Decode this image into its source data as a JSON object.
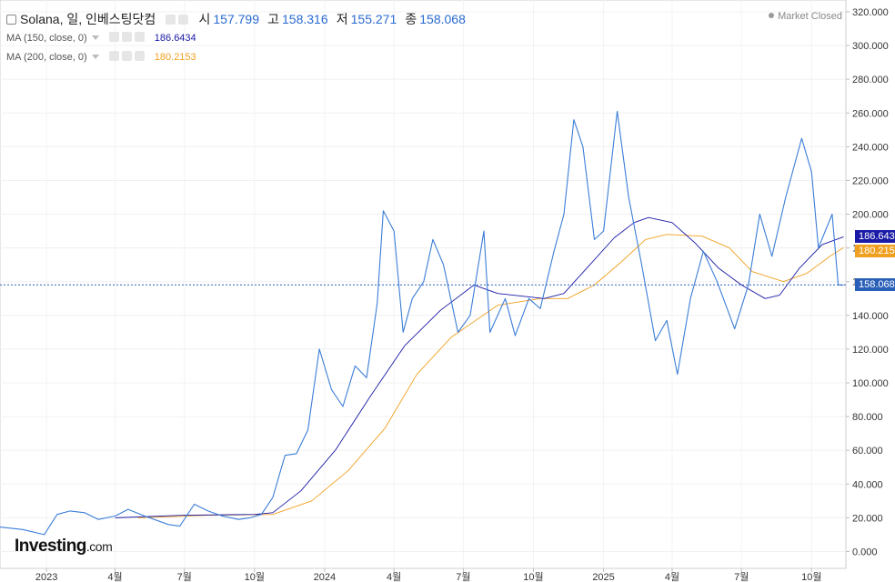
{
  "header": {
    "title": "Solana, 일, 인베스팅닷컴",
    "open_label": "시",
    "open": "157.799",
    "high_label": "고",
    "high": "158.316",
    "low_label": "저",
    "low": "155.271",
    "close_label": "종",
    "close": "158.068",
    "ma150_label": "MA (150, close, 0)",
    "ma150_value": "186.6434",
    "ma200_label": "MA (200, close, 0)",
    "ma200_value": "180.2153",
    "market_status": "Market Closed"
  },
  "price_tags": {
    "ma150": "186.643",
    "ma200": "180.215",
    "last": "158.068"
  },
  "logo": {
    "text": "Investing",
    "suffix": ".com"
  },
  "colors": {
    "price": "#3b7dd8",
    "ma150": "#1a1aa6",
    "ma200": "#f0a020",
    "last_line": "#2a5fb8"
  },
  "chart_data": {
    "type": "line",
    "x_range": [
      "2022-11-01",
      "2025-11-15"
    ],
    "ylim": [
      -10,
      327
    ],
    "y_ticks": [
      "320.000",
      "300.000",
      "280.000",
      "260.000",
      "240.000",
      "220.000",
      "200.000",
      "180.000",
      "160.000",
      "140.000",
      "120.000",
      "100.000",
      "80.000",
      "60.000",
      "40.000",
      "20.000",
      "0.000"
    ],
    "x_ticks": [
      {
        "date": "2023-01-01",
        "label": "2023"
      },
      {
        "date": "2023-04-01",
        "label": "4월"
      },
      {
        "date": "2023-07-01",
        "label": "7월"
      },
      {
        "date": "2023-10-01",
        "label": "10월"
      },
      {
        "date": "2024-01-01",
        "label": "2024"
      },
      {
        "date": "2024-04-01",
        "label": "4월"
      },
      {
        "date": "2024-07-01",
        "label": "7월"
      },
      {
        "date": "2024-10-01",
        "label": "10월"
      },
      {
        "date": "2025-01-01",
        "label": "2025"
      },
      {
        "date": "2025-04-01",
        "label": "4월"
      },
      {
        "date": "2025-07-01",
        "label": "7월"
      },
      {
        "date": "2025-10-01",
        "label": "10월"
      }
    ],
    "last_value": 158.068,
    "series": [
      {
        "key": "price",
        "points": [
          [
            "2022-11-01",
            14.5
          ],
          [
            "2022-12-01",
            13
          ],
          [
            "2022-12-29",
            10
          ],
          [
            "2023-01-15",
            22
          ],
          [
            "2023-02-01",
            24
          ],
          [
            "2023-02-20",
            23
          ],
          [
            "2023-03-10",
            19
          ],
          [
            "2023-04-01",
            21
          ],
          [
            "2023-04-18",
            25
          ],
          [
            "2023-05-10",
            21
          ],
          [
            "2023-06-10",
            16
          ],
          [
            "2023-06-25",
            15
          ],
          [
            "2023-07-14",
            28
          ],
          [
            "2023-08-01",
            24
          ],
          [
            "2023-08-20",
            21
          ],
          [
            "2023-09-10",
            19
          ],
          [
            "2023-09-25",
            20
          ],
          [
            "2023-10-10",
            22
          ],
          [
            "2023-10-25",
            32
          ],
          [
            "2023-11-10",
            57
          ],
          [
            "2023-11-25",
            58
          ],
          [
            "2023-12-10",
            72
          ],
          [
            "2023-12-25",
            120
          ],
          [
            "2024-01-10",
            96
          ],
          [
            "2024-01-25",
            86
          ],
          [
            "2024-02-10",
            110
          ],
          [
            "2024-02-25",
            103
          ],
          [
            "2024-03-10",
            147
          ],
          [
            "2024-03-18",
            202
          ],
          [
            "2024-04-01",
            190
          ],
          [
            "2024-04-13",
            130
          ],
          [
            "2024-04-25",
            150
          ],
          [
            "2024-05-10",
            160
          ],
          [
            "2024-05-22",
            185
          ],
          [
            "2024-06-05",
            170
          ],
          [
            "2024-06-24",
            130
          ],
          [
            "2024-07-10",
            140
          ],
          [
            "2024-07-28",
            190
          ],
          [
            "2024-08-05",
            130
          ],
          [
            "2024-08-25",
            150
          ],
          [
            "2024-09-07",
            128
          ],
          [
            "2024-09-25",
            150
          ],
          [
            "2024-10-10",
            144
          ],
          [
            "2024-10-28",
            178
          ],
          [
            "2024-11-10",
            200
          ],
          [
            "2024-11-23",
            256
          ],
          [
            "2024-12-05",
            240
          ],
          [
            "2024-12-20",
            185
          ],
          [
            "2025-01-01",
            190
          ],
          [
            "2025-01-19",
            261
          ],
          [
            "2025-02-03",
            210
          ],
          [
            "2025-02-20",
            170
          ],
          [
            "2025-03-10",
            125
          ],
          [
            "2025-03-25",
            137
          ],
          [
            "2025-04-08",
            105
          ],
          [
            "2025-04-25",
            150
          ],
          [
            "2025-05-12",
            178
          ],
          [
            "2025-05-30",
            160
          ],
          [
            "2025-06-22",
            132
          ],
          [
            "2025-07-10",
            158
          ],
          [
            "2025-07-25",
            200
          ],
          [
            "2025-08-10",
            175
          ],
          [
            "2025-08-28",
            210
          ],
          [
            "2025-09-18",
            245
          ],
          [
            "2025-10-01",
            225
          ],
          [
            "2025-10-10",
            180
          ],
          [
            "2025-10-28",
            200
          ],
          [
            "2025-11-05",
            158
          ],
          [
            "2025-11-12",
            158
          ]
        ]
      },
      {
        "key": "ma150",
        "points": [
          [
            "2023-04-01",
            20
          ],
          [
            "2023-07-01",
            21.5
          ],
          [
            "2023-10-01",
            22
          ],
          [
            "2023-10-25",
            23
          ],
          [
            "2023-12-01",
            36
          ],
          [
            "2024-01-15",
            60
          ],
          [
            "2024-03-01",
            92
          ],
          [
            "2024-04-15",
            122
          ],
          [
            "2024-06-01",
            143
          ],
          [
            "2024-07-15",
            158
          ],
          [
            "2024-08-15",
            153
          ],
          [
            "2024-10-15",
            150
          ],
          [
            "2024-11-10",
            153
          ],
          [
            "2024-12-10",
            168
          ],
          [
            "2025-01-15",
            186
          ],
          [
            "2025-02-10",
            195
          ],
          [
            "2025-03-01",
            198
          ],
          [
            "2025-04-01",
            195
          ],
          [
            "2025-05-01",
            183
          ],
          [
            "2025-06-01",
            168
          ],
          [
            "2025-07-01",
            158
          ],
          [
            "2025-08-01",
            150
          ],
          [
            "2025-08-20",
            152
          ],
          [
            "2025-09-15",
            168
          ],
          [
            "2025-10-15",
            182
          ],
          [
            "2025-11-12",
            186.6
          ]
        ]
      },
      {
        "key": "ma200",
        "points": [
          [
            "2023-05-01",
            20
          ],
          [
            "2023-08-01",
            21.5
          ],
          [
            "2023-10-25",
            22
          ],
          [
            "2023-12-15",
            30
          ],
          [
            "2024-02-01",
            48
          ],
          [
            "2024-03-20",
            73
          ],
          [
            "2024-05-01",
            105
          ],
          [
            "2024-06-15",
            127
          ],
          [
            "2024-08-15",
            146
          ],
          [
            "2024-10-10",
            150
          ],
          [
            "2024-11-15",
            150
          ],
          [
            "2024-12-20",
            158
          ],
          [
            "2025-01-25",
            172
          ],
          [
            "2025-02-25",
            185
          ],
          [
            "2025-03-25",
            188
          ],
          [
            "2025-05-10",
            187
          ],
          [
            "2025-06-15",
            180
          ],
          [
            "2025-07-15",
            166
          ],
          [
            "2025-08-25",
            160
          ],
          [
            "2025-09-25",
            165
          ],
          [
            "2025-10-25",
            175
          ],
          [
            "2025-11-12",
            180.2
          ]
        ]
      }
    ]
  }
}
